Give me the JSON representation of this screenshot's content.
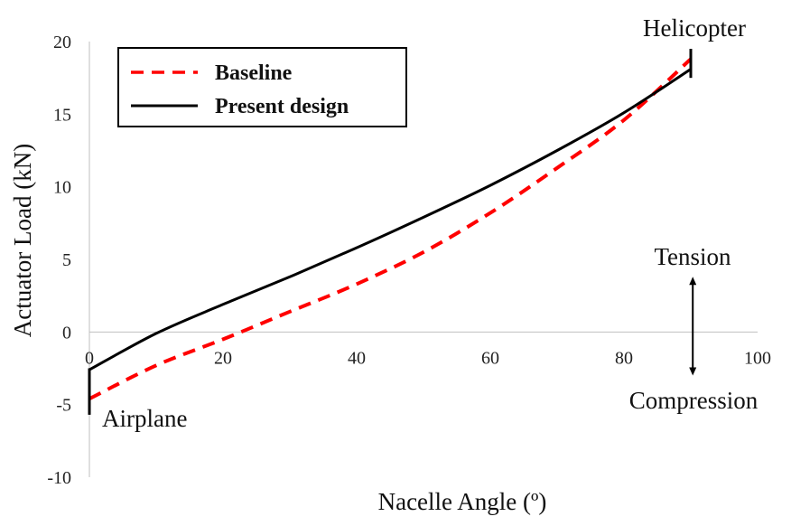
{
  "chart_data": {
    "type": "line",
    "xlabel": "Nacelle Angle (º)",
    "ylabel": "Actuator Load (kN)",
    "xlim": [
      0,
      100
    ],
    "ylim": [
      -10,
      20
    ],
    "xticks": [
      "0",
      "20",
      "40",
      "60",
      "80",
      "100"
    ],
    "yticks": [
      "-10",
      "-5",
      "0",
      "5",
      "10",
      "15",
      "20"
    ],
    "grid": false,
    "legend_position": "top-left",
    "series": [
      {
        "name": "Baseline",
        "color": "#ff0000",
        "style": "dashed",
        "x": [
          0,
          10,
          20,
          30,
          40,
          50,
          60,
          70,
          80,
          90
        ],
        "y": [
          -4.6,
          -2.3,
          -0.5,
          1.4,
          3.3,
          5.5,
          8.2,
          11.3,
          14.6,
          18.8
        ]
      },
      {
        "name": "Present design",
        "color": "#000000",
        "style": "solid",
        "x": [
          0,
          10,
          20,
          30,
          40,
          50,
          60,
          70,
          80,
          90
        ],
        "y": [
          -2.6,
          -0.1,
          1.9,
          3.8,
          5.8,
          7.9,
          10.1,
          12.5,
          15.1,
          18.1
        ]
      }
    ],
    "annotations": {
      "top_right": "Helicopter",
      "bottom_left": "Airplane",
      "arrow_up": "Tension",
      "arrow_down": "Compression"
    },
    "markers": {
      "airplane_range": [
        -5.7,
        -2.5
      ],
      "helicopter_range": [
        17.5,
        19.5
      ],
      "arrow_x": 90.3,
      "arrow_range": [
        -3.0,
        3.8
      ]
    }
  }
}
